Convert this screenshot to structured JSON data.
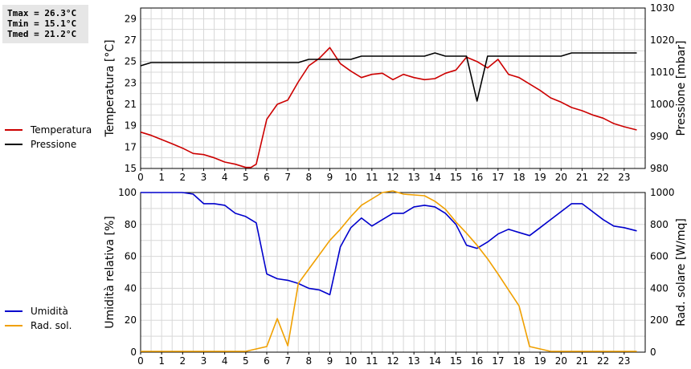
{
  "stats": [
    "Tmax = 26.3°C",
    "Tmin = 15.1°C",
    "Tmed = 21.2°C"
  ],
  "colors": {
    "temperature": "#cc0000",
    "pressure": "#000000",
    "humidity": "#0000cc",
    "radiation": "#f0a000",
    "grid": "#d8d8d8"
  },
  "chart_data": [
    {
      "type": "line",
      "grid": true,
      "ylabel": "Temperatura [°C]",
      "y2label": "Pressione [mbar]",
      "xlim": [
        0,
        24
      ],
      "ylim": [
        15,
        30
      ],
      "y2lim": [
        980,
        1030
      ],
      "xticks": [
        "0",
        "1",
        "2",
        "3",
        "4",
        "5",
        "6",
        "7",
        "8",
        "9",
        "10",
        "11",
        "12",
        "13",
        "14",
        "15",
        "16",
        "17",
        "18",
        "19",
        "20",
        "21",
        "22",
        "23"
      ],
      "yticks": [
        "15",
        "17",
        "19",
        "21",
        "23",
        "25",
        "27",
        "29"
      ],
      "y2ticks": [
        "980",
        "990",
        "1000",
        "1010",
        "1020",
        "1030"
      ],
      "legend_position": "left",
      "series": [
        {
          "name": "Temperatura",
          "axis": "left",
          "x": [
            0,
            0.5,
            1,
            1.5,
            2,
            2.5,
            3,
            3.5,
            4,
            4.5,
            5,
            5.25,
            5.5,
            6,
            6.5,
            7,
            7.5,
            8,
            8.5,
            9,
            9.5,
            10,
            10.5,
            11,
            11.5,
            12,
            12.5,
            13,
            13.5,
            14,
            14.5,
            15,
            15.5,
            16,
            16.5,
            17,
            17.5,
            18,
            18.5,
            19,
            19.5,
            20,
            20.5,
            21,
            21.5,
            22,
            22.5,
            23,
            23.6
          ],
          "y": [
            18.4,
            18.1,
            17.7,
            17.3,
            16.9,
            16.4,
            16.3,
            16.0,
            15.6,
            15.4,
            15.1,
            15.1,
            15.4,
            19.6,
            21.0,
            21.4,
            23.1,
            24.6,
            25.3,
            26.3,
            24.8,
            24.1,
            23.5,
            23.8,
            23.9,
            23.3,
            23.8,
            23.5,
            23.3,
            23.4,
            23.9,
            24.2,
            25.4,
            25.0,
            24.4,
            25.2,
            23.8,
            23.5,
            22.9,
            22.3,
            21.6,
            21.2,
            20.7,
            20.4,
            20.0,
            19.7,
            19.2,
            18.9,
            18.6
          ]
        },
        {
          "name": "Pressione",
          "axis": "right",
          "x": [
            0,
            0.5,
            1,
            2,
            3,
            4,
            5,
            6,
            7,
            7.5,
            8,
            9,
            10,
            10.5,
            11,
            12,
            13,
            13.5,
            14,
            14.5,
            15,
            15.5,
            16,
            16.5,
            17,
            18,
            19,
            20,
            20.5,
            21,
            22,
            23,
            23.6
          ],
          "y": [
            1012,
            1013,
            1013,
            1013,
            1013,
            1013,
            1013,
            1013,
            1013,
            1013,
            1014,
            1014,
            1014,
            1015,
            1015,
            1015,
            1015,
            1015,
            1016,
            1015,
            1015,
            1015,
            1001,
            1015,
            1015,
            1015,
            1015,
            1015,
            1016,
            1016,
            1016,
            1016,
            1016
          ]
        }
      ]
    },
    {
      "type": "line",
      "grid": true,
      "ylabel": "Umidità relativa [%]",
      "y2label": "Rad. solare [W/mq]",
      "xlim": [
        0,
        24
      ],
      "ylim": [
        0,
        100
      ],
      "y2lim": [
        0,
        1000
      ],
      "xticks": [
        "0",
        "1",
        "2",
        "3",
        "4",
        "5",
        "6",
        "7",
        "8",
        "9",
        "10",
        "11",
        "12",
        "13",
        "14",
        "15",
        "16",
        "17",
        "18",
        "19",
        "20",
        "21",
        "22",
        "23"
      ],
      "yticks": [
        "0",
        "20",
        "40",
        "60",
        "80",
        "100"
      ],
      "y2ticks": [
        "0",
        "200",
        "400",
        "600",
        "800",
        "1000"
      ],
      "legend_position": "left",
      "series": [
        {
          "name": "Umidità",
          "axis": "left",
          "x": [
            0,
            0.5,
            1,
            1.5,
            2,
            2.5,
            3,
            3.5,
            4,
            4.5,
            5,
            5.5,
            6,
            6.5,
            7,
            7.5,
            8,
            8.5,
            9,
            9.5,
            10,
            10.5,
            11,
            11.5,
            12,
            12.5,
            13,
            13.5,
            14,
            14.5,
            15,
            15.5,
            16,
            16.5,
            17,
            17.5,
            18,
            18.5,
            19,
            19.5,
            20,
            20.5,
            21,
            21.5,
            22,
            22.5,
            23,
            23.6
          ],
          "y": [
            100,
            100,
            100,
            100,
            100,
            99,
            93,
            93,
            92,
            87,
            85,
            81,
            49,
            46,
            45,
            43,
            40,
            39,
            36,
            66,
            78,
            84,
            79,
            83,
            87,
            87,
            91,
            92,
            91,
            87,
            80,
            67,
            65,
            69,
            74,
            77,
            75,
            73,
            78,
            83,
            88,
            93,
            93,
            88,
            83,
            79,
            78,
            76
          ]
        },
        {
          "name": "Rad. sol.",
          "axis": "right",
          "x": [
            0,
            1,
            2,
            3,
            4,
            5,
            5.5,
            6,
            6.5,
            7,
            7.5,
            8,
            8.5,
            9,
            9.5,
            10,
            10.5,
            11,
            11.5,
            12,
            12.5,
            13,
            13.5,
            14,
            14.5,
            15,
            15.5,
            16,
            16.5,
            17,
            17.5,
            18,
            18.5,
            19,
            19.5,
            20,
            21,
            22,
            23,
            23.6
          ],
          "y": [
            5,
            5,
            5,
            5,
            5,
            5,
            20,
            35,
            210,
            40,
            430,
            520,
            610,
            700,
            770,
            850,
            920,
            960,
            1000,
            1010,
            990,
            985,
            980,
            945,
            895,
            815,
            745,
            670,
            585,
            490,
            390,
            290,
            35,
            20,
            5,
            5,
            5,
            5,
            5,
            5
          ]
        }
      ]
    }
  ]
}
